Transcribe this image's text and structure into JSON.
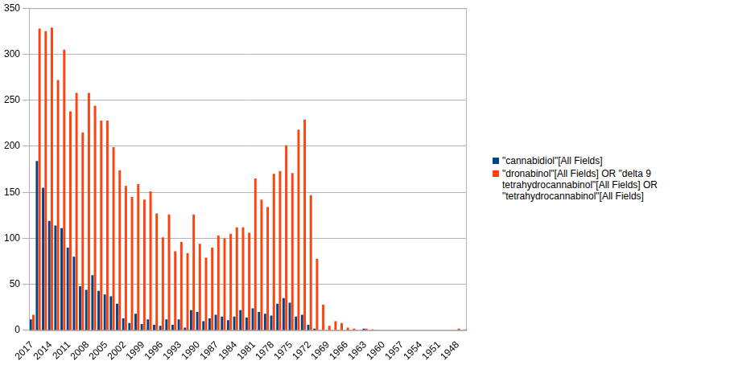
{
  "chart_data": {
    "type": "bar",
    "categories": [
      "2017",
      null,
      null,
      "2014",
      null,
      null,
      "2011",
      null,
      null,
      "2008",
      null,
      null,
      "2005",
      null,
      null,
      "2002",
      null,
      null,
      "1999",
      null,
      null,
      "1996",
      null,
      null,
      "1993",
      null,
      null,
      "1990",
      null,
      null,
      "1987",
      null,
      null,
      "1984",
      null,
      null,
      "1981",
      null,
      null,
      "1978",
      null,
      null,
      "1975",
      null,
      null,
      "1972",
      null,
      null,
      "1969",
      null,
      null,
      "1966",
      null,
      null,
      "1963",
      null,
      null,
      "1960",
      null,
      null,
      "1957",
      null,
      null,
      "1954",
      null,
      null,
      "1951",
      null,
      null,
      "1948",
      null
    ],
    "series": [
      {
        "name": "\"cannabidiol\"[All Fields]",
        "color": "#004586",
        "values": [
          12,
          184,
          155,
          119,
          114,
          111,
          90,
          80,
          48,
          44,
          60,
          43,
          39,
          37,
          29,
          13,
          8,
          18,
          7,
          12,
          6,
          5,
          12,
          6,
          12,
          3,
          22,
          20,
          10,
          13,
          17,
          15,
          11,
          15,
          22,
          14,
          24,
          20,
          18,
          16,
          29,
          35,
          30,
          15,
          17,
          6,
          2,
          0,
          0,
          0,
          0,
          0,
          0,
          0,
          2,
          0,
          0,
          0,
          0,
          0,
          0,
          0,
          0,
          0,
          0,
          0,
          0,
          0,
          0,
          0,
          0
        ]
      },
      {
        "name": "\"dronabinol\"[All Fields] OR \"delta 9 tetrahydrocannabinol\"[All Fields] OR \"tetrahydrocannabinol\"[All Fields]",
        "color": "#ff420e",
        "values": [
          17,
          328,
          325,
          329,
          272,
          305,
          238,
          258,
          215,
          258,
          244,
          228,
          228,
          199,
          174,
          157,
          145,
          159,
          142,
          151,
          127,
          101,
          126,
          86,
          96,
          84,
          126,
          94,
          79,
          90,
          103,
          100,
          105,
          112,
          112,
          106,
          165,
          142,
          134,
          170,
          173,
          201,
          171,
          218,
          229,
          147,
          78,
          28,
          5,
          10,
          8,
          3,
          2,
          0,
          2,
          1,
          0,
          0,
          0,
          0,
          0,
          0,
          0,
          0,
          0,
          0,
          0,
          0,
          0,
          2,
          1
        ]
      }
    ],
    "ylim": [
      0,
      350
    ],
    "yticks": [
      0,
      50,
      100,
      150,
      200,
      250,
      300,
      350
    ],
    "grid": true,
    "legend": "right"
  }
}
